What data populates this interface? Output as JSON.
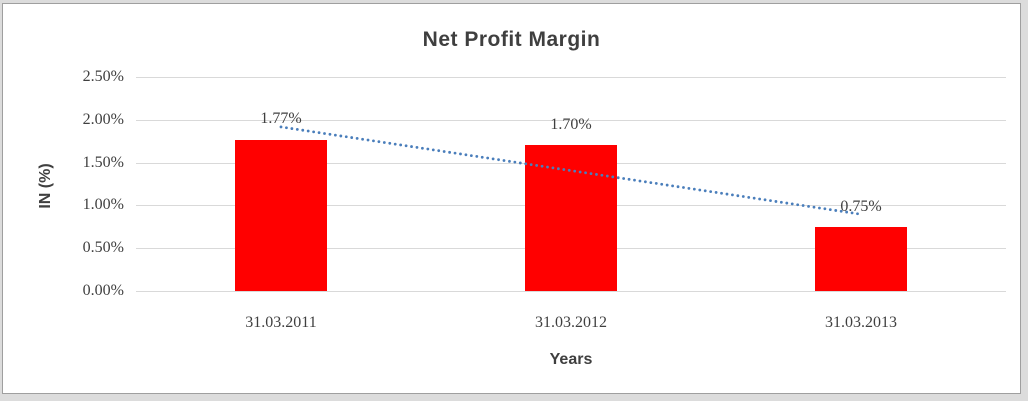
{
  "frame": {
    "outer_background": "#dcdcdc",
    "panel_background": "#ffffff",
    "panel_border": "#9f9f9f",
    "text_color": "#3f3f3f",
    "gridline_color": "#d9d9d9"
  },
  "chart_data": {
    "type": "bar",
    "title": "Net Profit Margin",
    "xlabel": "Years",
    "ylabel": "IN (%)",
    "categories": [
      "31.03.2011",
      "31.03.2012",
      "31.03.2013"
    ],
    "values": [
      1.77,
      1.7,
      0.75
    ],
    "data_labels": [
      "1.77%",
      "1.70%",
      "0.75%"
    ],
    "y_ticks": [
      "2.50%",
      "2.00%",
      "1.50%",
      "1.00%",
      "0.50%",
      "0.00%"
    ],
    "ylim": [
      0,
      2.5
    ],
    "grid": true,
    "legend": "none",
    "bar_color": "#ff0000",
    "trendline": {
      "kind": "linear",
      "style": "dotted",
      "color": "#4a7ebb"
    }
  }
}
